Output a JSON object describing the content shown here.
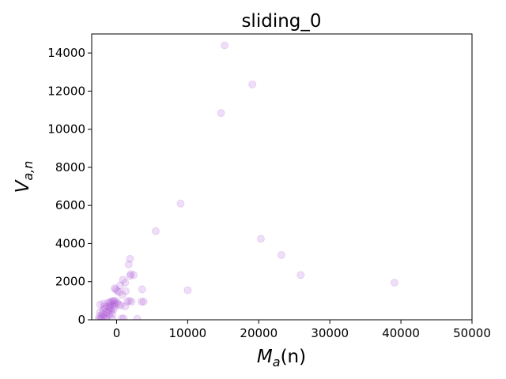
{
  "chart_data": {
    "type": "scatter",
    "title": "sliding_0",
    "xlabel_main": "M",
    "xlabel_sub": "a",
    "xlabel_rest": "(n)",
    "ylabel_main": "V",
    "ylabel_sub": "a,n",
    "xlim": [
      -3500,
      50000
    ],
    "ylim": [
      0,
      15000
    ],
    "x_ticks": [
      0,
      10000,
      20000,
      30000,
      40000,
      50000
    ],
    "y_ticks": [
      0,
      2000,
      4000,
      6000,
      8000,
      10000,
      12000,
      14000
    ],
    "grid": false,
    "marker_color": "#b05ad6",
    "series": [
      {
        "points": [
          [
            15200,
            14400
          ],
          [
            19100,
            12350
          ],
          [
            14700,
            10850
          ],
          [
            9000,
            6100
          ],
          [
            5500,
            4650
          ],
          [
            20300,
            4250
          ],
          [
            23200,
            3400
          ],
          [
            25900,
            2350
          ],
          [
            39100,
            1950
          ],
          [
            10000,
            1550
          ],
          [
            1900,
            3200
          ],
          [
            1700,
            2900
          ],
          [
            2000,
            2400
          ],
          [
            2400,
            2350
          ],
          [
            1900,
            2300
          ],
          [
            900,
            2100
          ],
          [
            1200,
            1950
          ],
          [
            500,
            1800
          ],
          [
            -300,
            1650
          ],
          [
            -100,
            1600
          ],
          [
            100,
            1500
          ],
          [
            400,
            1450
          ],
          [
            1300,
            1500
          ],
          [
            3600,
            1600
          ],
          [
            800,
            1300
          ],
          [
            3500,
            950
          ],
          [
            3800,
            950
          ],
          [
            2100,
            950
          ],
          [
            1500,
            950
          ],
          [
            1800,
            1000
          ],
          [
            -2300,
            800
          ],
          [
            -1800,
            850
          ],
          [
            -1200,
            900
          ],
          [
            -800,
            950
          ],
          [
            -500,
            1000
          ],
          [
            -200,
            1000
          ],
          [
            100,
            900
          ],
          [
            300,
            800
          ],
          [
            600,
            750
          ],
          [
            1200,
            700
          ],
          [
            2900,
            50
          ],
          [
            1000,
            80
          ],
          [
            700,
            60
          ],
          [
            -2500,
            50
          ],
          [
            -2400,
            200
          ],
          [
            -2300,
            400
          ],
          [
            -2100,
            150
          ],
          [
            -2000,
            300
          ],
          [
            -1900,
            500
          ],
          [
            -1800,
            100
          ],
          [
            -1700,
            250
          ],
          [
            -1600,
            600
          ],
          [
            -1500,
            400
          ],
          [
            -1400,
            150
          ],
          [
            -1300,
            700
          ],
          [
            -1200,
            350
          ],
          [
            -1100,
            500
          ],
          [
            -1000,
            250
          ],
          [
            -900,
            750
          ],
          [
            -800,
            450
          ],
          [
            -700,
            600
          ],
          [
            -600,
            300
          ],
          [
            -500,
            800
          ],
          [
            -400,
            550
          ],
          [
            -300,
            700
          ],
          [
            -200,
            850
          ],
          [
            -1000,
            650
          ],
          [
            -1500,
            50
          ],
          [
            -2200,
            50
          ],
          [
            -600,
            50
          ],
          [
            -400,
            950
          ],
          [
            -900,
            900
          ],
          [
            -1700,
            700
          ]
        ]
      }
    ]
  }
}
